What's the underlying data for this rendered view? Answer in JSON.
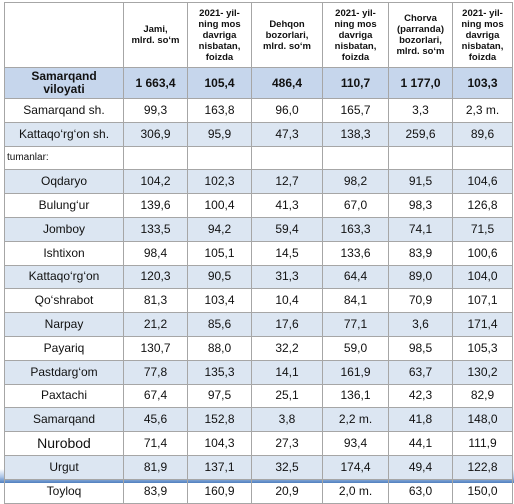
{
  "table": {
    "header": [
      "Jami,\nmlrd. so‘m",
      "2021- yil-\nning mos\ndavriga\nnisbatan,\nfoizda",
      "Dehqon\nbozorlari,\nmlrd. so‘m",
      "2021- yil-\nning mos\ndavriga\nnisbatan,\nfoizda",
      "Chorva\n(parranda)\nbozorlari,\nmlrd. so‘m",
      "2021- yil-\nning mos\ndavriga\nnisbatan,\nfoizda"
    ],
    "rows": [
      [
        "Samarqand\nviloyati",
        "1 663,4",
        "105,4",
        "486,4",
        "110,7",
        "1 177,0",
        "103,3"
      ],
      [
        "Samarqand sh.",
        "99,3",
        "163,8",
        "96,0",
        "165,7",
        "3,3",
        "2,3 m."
      ],
      [
        "Kattaqo‘rg‘on  sh.",
        "306,9",
        "95,9",
        "47,3",
        "138,3",
        "259,6",
        "89,6"
      ],
      [
        "tumanlar:"
      ],
      [
        "Oqdaryo",
        "104,2",
        "102,3",
        "12,7",
        "98,2",
        "91,5",
        "104,6"
      ],
      [
        "Bulung‘ur",
        "139,6",
        "100,4",
        "41,3",
        "67,0",
        "98,3",
        "126,8"
      ],
      [
        "Jomboy",
        "133,5",
        "94,2",
        "59,4",
        "163,3",
        "74,1",
        "71,5"
      ],
      [
        "Ishtixon",
        "98,4",
        "105,1",
        "14,5",
        "133,6",
        "83,9",
        "100,6"
      ],
      [
        "Kattaqo‘rg‘on",
        "120,3",
        "90,5",
        "31,3",
        "64,4",
        "89,0",
        "104,0"
      ],
      [
        "Qo‘shrabot",
        "81,3",
        "103,4",
        "10,4",
        "84,1",
        "70,9",
        "107,1"
      ],
      [
        "Narpay",
        "21,2",
        "85,6",
        "17,6",
        "77,1",
        "3,6",
        "171,4"
      ],
      [
        "Payariq",
        "130,7",
        "88,0",
        "32,2",
        "59,0",
        "98,5",
        "105,3"
      ],
      [
        "Pastdarg‘om",
        "77,8",
        "135,3",
        "14,1",
        "161,9",
        "63,7",
        "130,2"
      ],
      [
        "Paxtachi",
        "67,4",
        "97,5",
        "25,1",
        "136,1",
        "42,3",
        "82,9"
      ],
      [
        "Samarqand",
        "45,6",
        "152,8",
        "3,8",
        "2,2 m.",
        "41,8",
        "148,0"
      ],
      [
        "Nurobod",
        "71,4",
        "104,3",
        "27,3",
        "93,4",
        "44,1",
        "111,9"
      ],
      [
        "Urgut",
        "81,9",
        "137,1",
        "32,5",
        "174,4",
        "49,4",
        "122,8"
      ],
      [
        "Toyloq",
        "83,9",
        "160,9",
        "20,9",
        "2,0 m.",
        "63,0",
        "150,0"
      ]
    ]
  }
}
